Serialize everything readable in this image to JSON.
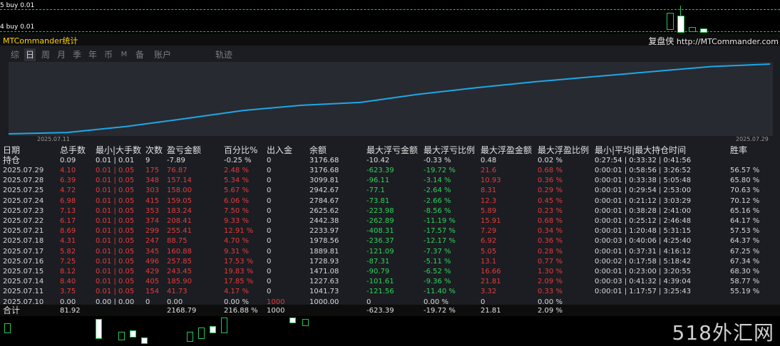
{
  "top_orders": [
    {
      "label": "5 buy 0.01"
    },
    {
      "label": "4 buy 0.01"
    }
  ],
  "title": "MTCommander统计",
  "brand": {
    "name": "复盘侠",
    "url": "http://MTCommander.com"
  },
  "tabs": [
    {
      "label": "综"
    },
    {
      "label": "日"
    },
    {
      "label": "周"
    },
    {
      "label": "月"
    },
    {
      "label": "季"
    },
    {
      "label": "年"
    },
    {
      "label": "币"
    },
    {
      "label": "M"
    },
    {
      "label": "备"
    },
    {
      "label": "账户"
    },
    {
      "label": "轨迹"
    }
  ],
  "active_tab": "日",
  "chart_data": {
    "type": "line",
    "x_start": "2025.07.11",
    "x_end": "2025.07.29",
    "x": [
      "2025.07.10",
      "2025.07.11",
      "2025.07.14",
      "2025.07.15",
      "2025.07.16",
      "2025.07.17",
      "2025.07.18",
      "2025.07.21",
      "2025.07.22",
      "2025.07.23",
      "2025.07.24",
      "2025.07.25",
      "2025.07.28",
      "2025.07.29"
    ],
    "values": [
      1000.0,
      1041.73,
      1227.63,
      1471.08,
      1728.93,
      1889.81,
      1978.56,
      2233.97,
      2442.38,
      2625.62,
      2784.67,
      2942.67,
      3099.81,
      3176.68
    ],
    "color": "#1ea7e8"
  },
  "table": {
    "headers": [
      "日期",
      "总手数",
      "最小|大手数",
      "次数",
      "盈亏金额",
      "百分比%",
      "出入金",
      "余额",
      "最大浮亏金额",
      "最大浮亏比例",
      "最大浮盈金额",
      "最大浮盈比例",
      "最小|平均|最大持仓时间",
      "胜率"
    ],
    "holding": [
      "持仓",
      "0.09",
      "0.01 | 0.01",
      "9",
      "-7.89",
      "-0.25 %",
      "0",
      "3176.68",
      "-10.42",
      "-0.33 %",
      "0.48",
      "0.02 %",
      "0:27:54 | 0:33:32 | 0:41:56",
      ""
    ],
    "rows": [
      [
        "2025.07.29",
        "4.10",
        "0.01 | 0.05",
        "175",
        "76.87",
        "2.48 %",
        "0",
        "3176.68",
        "-623.39",
        "-19.72 %",
        "21.6",
        "0.68 %",
        "0:00:01 | 0:58:56 | 3:26:52",
        "56.57 %"
      ],
      [
        "2025.07.28",
        "6.39",
        "0.01 | 0.05",
        "348",
        "157.14",
        "5.34 %",
        "0",
        "3099.81",
        "-96.11",
        "-3.14 %",
        "10.93",
        "0.36 %",
        "0:00:01 | 0:33:38 | 5:05:48",
        "65.80 %"
      ],
      [
        "2025.07.25",
        "4.72",
        "0.01 | 0.05",
        "303",
        "158.00",
        "5.67 %",
        "0",
        "2942.67",
        "-77.1",
        "-2.64 %",
        "8.31",
        "0.29 %",
        "0:00:01 | 0:29:54 | 2:53:00",
        "70.63 %"
      ],
      [
        "2025.07.24",
        "6.98",
        "0.01 | 0.05",
        "415",
        "159.05",
        "6.06 %",
        "0",
        "2784.67",
        "-73.81",
        "-2.66 %",
        "12.3",
        "0.45 %",
        "0:00:01 | 0:21:12 | 3:03:29",
        "70.12 %"
      ],
      [
        "2025.07.23",
        "7.13",
        "0.01 | 0.05",
        "353",
        "183.24",
        "7.50 %",
        "0",
        "2625.62",
        "-223.98",
        "-8.56 %",
        "5.89",
        "0.23 %",
        "0:00:01 | 0:38:28 | 2:41:00",
        "65.16 %"
      ],
      [
        "2025.07.22",
        "6.17",
        "0.01 | 0.05",
        "374",
        "208.41",
        "9.33 %",
        "0",
        "2442.38",
        "-262.89",
        "-11.19 %",
        "15.91",
        "0.68 %",
        "0:00:01 | 0:25:12 | 2:46:48",
        "64.17 %"
      ],
      [
        "2025.07.21",
        "8.69",
        "0.01 | 0.05",
        "299",
        "255.41",
        "12.91 %",
        "0",
        "2233.97",
        "-408.31",
        "-17.57 %",
        "7.29",
        "0.34 %",
        "0:00:01 | 1:20:48 | 5:31:15",
        "57.53 %"
      ],
      [
        "2025.07.18",
        "4.31",
        "0.01 | 0.05",
        "247",
        "88.75",
        "4.70 %",
        "0",
        "1978.56",
        "-236.37",
        "-12.17 %",
        "6.92",
        "0.36 %",
        "0:00:03 | 0:40:06 | 4:25:40",
        "64.37 %"
      ],
      [
        "2025.07.17",
        "5.82",
        "0.01 | 0.05",
        "345",
        "160.88",
        "9.31 %",
        "0",
        "1889.81",
        "-121.09",
        "-7.37 %",
        "5.05",
        "0.28 %",
        "0:00:01 | 0:37:31 | 4:16:12",
        "67.25 %"
      ],
      [
        "2025.07.16",
        "7.25",
        "0.01 | 0.05",
        "496",
        "257.85",
        "17.53 %",
        "0",
        "1728.93",
        "-87.31",
        "-5.11 %",
        "13.1",
        "0.77 %",
        "0:00:02 | 0:17:58 | 5:18:42",
        "67.34 %"
      ],
      [
        "2025.07.15",
        "8.12",
        "0.01 | 0.05",
        "429",
        "243.45",
        "19.83 %",
        "0",
        "1471.08",
        "-90.79",
        "-6.52 %",
        "16.66",
        "1.30 %",
        "0:00:01 | 0:23:00 | 3:20:55",
        "68.30 %"
      ],
      [
        "2025.07.14",
        "8.40",
        "0.01 | 0.05",
        "405",
        "185.90",
        "17.85 %",
        "0",
        "1227.63",
        "-101.61",
        "-9.36 %",
        "21.81",
        "2.09 %",
        "0:00:03 | 0:41:32 | 4:39:04",
        "58.77 %"
      ],
      [
        "2025.07.11",
        "3.75",
        "0.01 | 0.05",
        "154",
        "41.73",
        "4.17 %",
        "0",
        "1041.73",
        "-121.56",
        "-11.40 %",
        "3.32",
        "0.33 %",
        "0:00:01 | 1:17:57 | 3:25:43",
        "55.19 %"
      ],
      [
        "2025.07.10",
        "0.00",
        "0.00 | 0.00",
        "0",
        "0.00",
        "0.00 %",
        "1000",
        "1000.00",
        "0",
        "0.00 %",
        "0",
        "0.00 %",
        "",
        ""
      ]
    ],
    "totals": [
      "合计",
      "81.92",
      "",
      "",
      "2168.79",
      "216.88 %",
      "1000",
      "",
      "-623.39",
      "-19.72 %",
      "21.81",
      "2.09 %",
      "",
      ""
    ]
  },
  "watermark": "518外汇网",
  "colors": {
    "profit": "#e53b3b",
    "loss": "#2fd35a",
    "neutral": "#d8d8d8",
    "curve": "#1ea7e8",
    "title": "#ffd400"
  }
}
